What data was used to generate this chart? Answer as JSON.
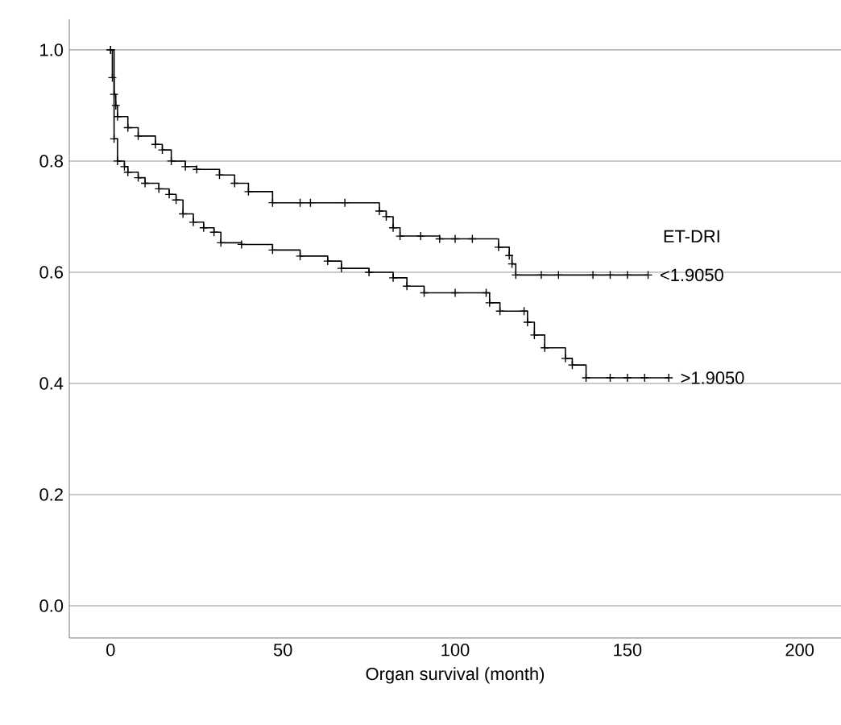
{
  "chart_data": {
    "type": "step",
    "xlabel": "Organ survival (month)",
    "legend_title": "ET-DRI",
    "xlim": [
      -12,
      212
    ],
    "ylim": [
      -0.058,
      1.055
    ],
    "xticks": [
      0,
      50,
      100,
      150,
      200
    ],
    "yticks": [
      {
        "value": 0,
        "label": "0.0"
      },
      {
        "value": 0.2,
        "label": "0.2"
      },
      {
        "value": 0.4,
        "label": "0.4"
      },
      {
        "value": 0.6,
        "label": "0.6"
      },
      {
        "value": 0.8,
        "label": "0.8"
      },
      {
        "value": 1,
        "label": "1.0"
      }
    ],
    "grid": "y",
    "marker": "cross",
    "line_style": "solid",
    "series": [
      {
        "name": "<1.9050",
        "color": "#000000",
        "x": [
          0,
          0.5,
          1,
          1.5,
          2,
          5,
          8,
          13,
          15,
          17.6,
          21.7,
          25,
          31.6,
          36,
          40,
          47,
          55,
          58,
          68,
          78,
          80,
          82,
          84,
          90,
          95.5,
          100,
          105,
          112.6,
          115.7,
          116.5,
          117.6,
          125,
          130,
          140,
          145,
          150,
          156
        ],
        "values": [
          1.0,
          0.95,
          0.92,
          0.9,
          0.88,
          0.86,
          0.845,
          0.83,
          0.82,
          0.8,
          0.79,
          0.785,
          0.775,
          0.76,
          0.745,
          0.725,
          0.725,
          0.725,
          0.725,
          0.71,
          0.7,
          0.68,
          0.665,
          0.665,
          0.66,
          0.66,
          0.66,
          0.645,
          0.63,
          0.615,
          0.595,
          0.595,
          0.595,
          0.595,
          0.595,
          0.595,
          0.595
        ]
      },
      {
        "name": ">1.9050",
        "color": "#000000",
        "x": [
          0,
          1,
          2,
          4,
          5,
          8,
          10,
          14,
          17,
          19,
          21,
          24,
          27,
          30,
          32,
          38,
          47,
          55,
          63,
          67,
          75,
          82,
          86,
          91,
          100,
          109,
          110,
          113,
          120,
          121,
          123,
          126,
          132,
          134,
          138,
          145,
          150,
          155,
          162
        ],
        "values": [
          1.0,
          0.84,
          0.8,
          0.79,
          0.78,
          0.77,
          0.76,
          0.75,
          0.74,
          0.73,
          0.705,
          0.69,
          0.68,
          0.672,
          0.653,
          0.65,
          0.64,
          0.629,
          0.62,
          0.607,
          0.6,
          0.59,
          0.575,
          0.563,
          0.563,
          0.563,
          0.545,
          0.53,
          0.53,
          0.51,
          0.487,
          0.464,
          0.445,
          0.433,
          0.41,
          0.41,
          0.41,
          0.41,
          0.41
        ]
      }
    ]
  }
}
